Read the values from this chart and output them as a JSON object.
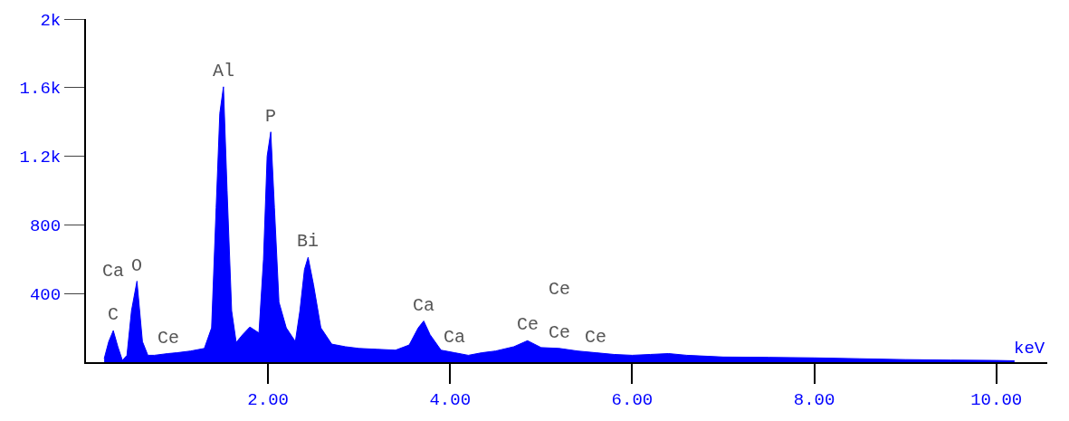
{
  "chart_data": {
    "type": "area",
    "xlabel": "keV",
    "x": [
      0.2,
      0.25,
      0.3,
      0.35,
      0.4,
      0.45,
      0.5,
      0.56,
      0.62,
      0.68,
      0.75,
      0.9,
      1.0,
      1.15,
      1.3,
      1.38,
      1.43,
      1.47,
      1.51,
      1.55,
      1.6,
      1.65,
      1.72,
      1.8,
      1.9,
      1.95,
      1.99,
      2.03,
      2.07,
      2.12,
      2.2,
      2.3,
      2.35,
      2.4,
      2.44,
      2.5,
      2.58,
      2.7,
      2.85,
      3.0,
      3.2,
      3.4,
      3.55,
      3.65,
      3.71,
      3.78,
      3.9,
      4.05,
      4.2,
      4.35,
      4.5,
      4.7,
      4.85,
      5.0,
      5.2,
      5.4,
      5.6,
      5.8,
      6.0,
      6.2,
      6.4,
      6.6,
      7.0,
      7.5,
      8.0,
      8.5,
      9.0,
      9.5,
      10.0,
      10.2
    ],
    "values": [
      20,
      120,
      184,
      90,
      10,
      40,
      300,
      472,
      120,
      40,
      40,
      50,
      55,
      65,
      80,
      200,
      900,
      1450,
      1605,
      1000,
      300,
      115,
      160,
      205,
      170,
      600,
      1200,
      1342,
      900,
      350,
      200,
      120,
      300,
      540,
      611,
      450,
      200,
      105,
      90,
      80,
      75,
      70,
      100,
      200,
      240,
      160,
      70,
      55,
      40,
      55,
      65,
      90,
      125,
      85,
      80,
      65,
      55,
      45,
      40,
      45,
      50,
      40,
      30,
      28,
      25,
      20,
      15,
      12,
      10,
      8
    ],
    "color": "#0000ff",
    "xlim": [
      0,
      10.56
    ],
    "ylim": [
      0,
      2000
    ],
    "xticks": [
      {
        "value": 2,
        "label": "2.00"
      },
      {
        "value": 4,
        "label": "4.00"
      },
      {
        "value": 6,
        "label": "6.00"
      },
      {
        "value": 8,
        "label": "8.00"
      },
      {
        "value": 10,
        "label": "10.00"
      }
    ],
    "yticks": [
      400,
      800,
      {
        "value": 1200,
        "label": "1.2k"
      },
      {
        "value": 1600,
        "label": "1.6k"
      },
      {
        "value": 2000,
        "label": "2k"
      }
    ],
    "annotations": [
      {
        "text": "C",
        "x": 0.3,
        "y": 184
      },
      {
        "text": "Ca",
        "x": 0.3,
        "y": 184
      },
      {
        "text": "O",
        "x": 0.56,
        "y": 472
      },
      {
        "text": "Ce",
        "x": 0.9,
        "y": 50
      },
      {
        "text": "Al",
        "x": 1.51,
        "y": 1605
      },
      {
        "text": "P",
        "x": 2.03,
        "y": 1342
      },
      {
        "text": "Bi",
        "x": 2.44,
        "y": 611
      },
      {
        "text": "Ca",
        "x": 3.71,
        "y": 240
      },
      {
        "text": "Ca",
        "x": 4.05,
        "y": 55
      },
      {
        "text": "Ce",
        "x": 4.85,
        "y": 125
      },
      {
        "text": "Ce",
        "x": 5.2,
        "y": 80
      },
      {
        "text": "Ce",
        "x": 5.2,
        "y": 80
      },
      {
        "text": "Ce",
        "x": 5.6,
        "y": 55
      }
    ]
  }
}
